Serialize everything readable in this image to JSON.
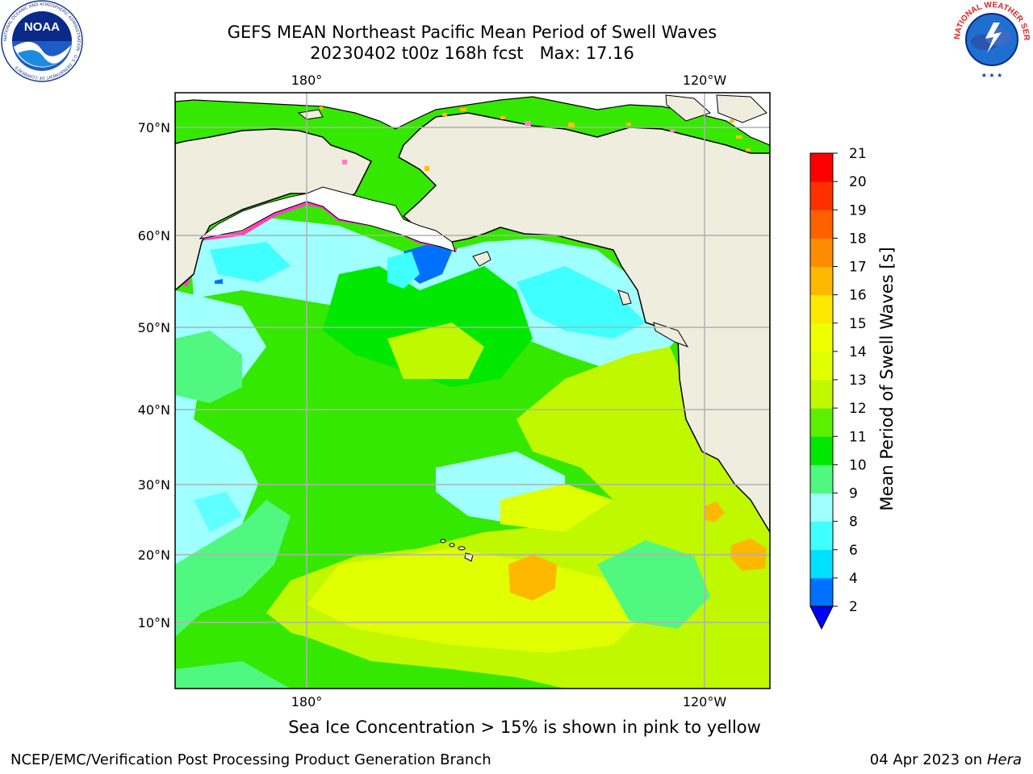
{
  "header": {
    "title_line1": "GEFS MEAN Northeast Pacific Mean Period of Swell Waves",
    "title_line2": "20230402 t00z 168h fcst   Max: 17.16"
  },
  "logos": {
    "left": "noaa-logo",
    "right": "nws-logo",
    "left_text": "NOAA",
    "left_ring_text": "NATIONAL OCEANIC AND ATMOSPHERIC ADMINISTRATION · U.S. DEPARTMENT OF COMMERCE",
    "right_ring_text": "NATIONAL WEATHER SERVICE"
  },
  "map": {
    "lon_labels_top": [
      "180°",
      "120°W"
    ],
    "lon_labels_bottom": [
      "180°",
      "120°W"
    ],
    "lat_labels": [
      "70°N",
      "60°N",
      "50°N",
      "40°N",
      "30°N",
      "20°N",
      "10°N"
    ],
    "land_color": "#efedde",
    "grid_color": "#b0b0b0"
  },
  "colorbar": {
    "label": "Mean Period of Swell Waves [s]",
    "ticks": [
      "2",
      "4",
      "6",
      "8",
      "9",
      "10",
      "11",
      "12",
      "13",
      "14",
      "15",
      "16",
      "17",
      "18",
      "19",
      "20",
      "21"
    ],
    "colors": [
      "#0070ff",
      "#00e0ff",
      "#40ffff",
      "#a0ffff",
      "#50f880",
      "#00e800",
      "#5af000",
      "#c0f800",
      "#e0ff00",
      "#f0ff00",
      "#ffe800",
      "#ffb800",
      "#ff8c00",
      "#ff6000",
      "#ff3000",
      "#ff0000"
    ],
    "under_color": "#0000ff"
  },
  "footer": {
    "note": "Sea Ice Concentration > 15% is shown in pink to yellow",
    "left": "NCEP/EMC/Verification Post Processing Product Generation Branch",
    "right_date": "04 Apr 2023 on ",
    "right_host": "Hera"
  }
}
